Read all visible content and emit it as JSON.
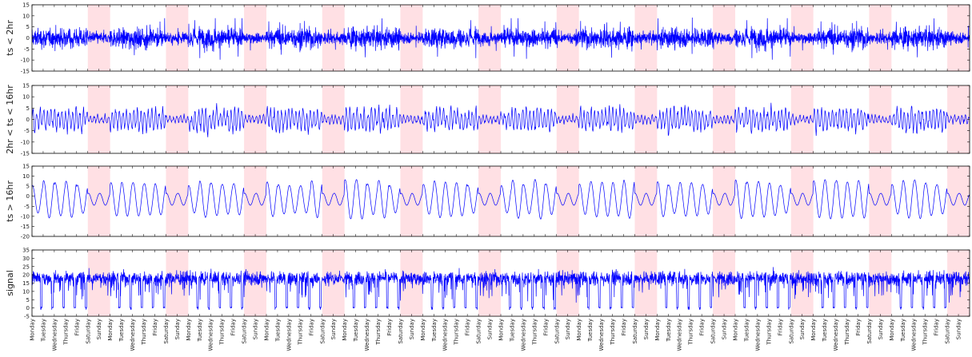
{
  "chart_data": {
    "type": "line",
    "x_tick_labels": [
      "Monday",
      "Tuesday",
      "Wednesday",
      "Thursday",
      "Friday",
      "Saturday",
      "Sunday"
    ],
    "num_weeks": 12,
    "x_tick_count": 84,
    "weekend_shading_color": "#ffe0e4",
    "line_color": "#0000ff",
    "panels": [
      {
        "ylabel": "ts < 2hr",
        "ylim": [
          -15,
          15
        ],
        "yticks": [
          -15,
          -10,
          -5,
          0,
          5,
          10,
          15
        ],
        "series": {
          "kind": "noise",
          "amplitude": 3.0,
          "spike_amplitude": 8.0,
          "values_per_day": 60
        }
      },
      {
        "ylabel": "2hr < ts < 16hr",
        "ylim": [
          -15,
          15
        ],
        "yticks": [
          -15,
          -10,
          -5,
          0,
          5,
          10,
          15
        ],
        "series": {
          "kind": "mid",
          "amplitude": 6.0,
          "values_per_day": 24
        }
      },
      {
        "ylabel": "ts > 16hr",
        "ylim": [
          -20,
          15
        ],
        "yticks": [
          -20,
          -15,
          -10,
          -5,
          0,
          5,
          10,
          15
        ],
        "series": {
          "kind": "daily_sine",
          "amplitude": 8.0,
          "weekend_amplitude": 3.0,
          "values_per_day": 24
        }
      },
      {
        "ylabel": "signal",
        "ylim": [
          -5,
          35
        ],
        "yticks": [
          -5,
          0,
          5,
          10,
          15,
          20,
          25,
          30,
          35
        ],
        "series": {
          "kind": "signal",
          "base": 18,
          "amplitude": 5.0,
          "drop_level": 0,
          "values_per_day": 48
        }
      }
    ]
  }
}
